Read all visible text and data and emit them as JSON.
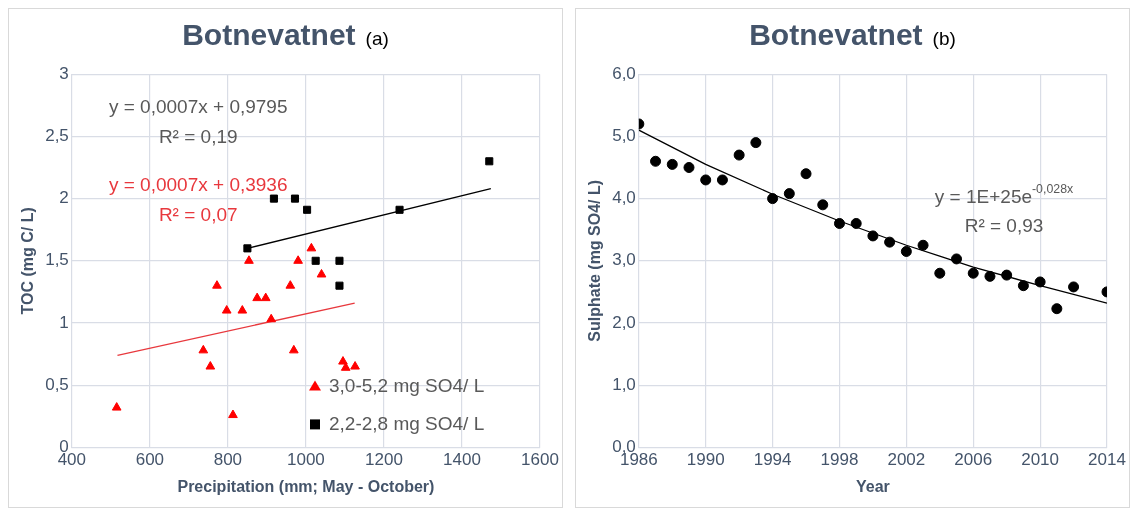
{
  "chart_data": [
    {
      "type": "scatter",
      "title": "Botnevatnet",
      "subtitle": "(a)",
      "xlabel": "Precipitation (mm; May - October)",
      "ylabel": "TOC (mg C/ L)",
      "xlim": [
        400,
        1600
      ],
      "xticks": [
        400,
        600,
        800,
        1000,
        1200,
        1400,
        1600
      ],
      "ylim": [
        0,
        3
      ],
      "yticks": [
        0,
        {
          "value": 0.5,
          "label": "0,5"
        },
        1,
        {
          "value": 1.5,
          "label": "1,5"
        },
        2,
        {
          "value": 2.5,
          "label": "2,5"
        },
        3
      ],
      "grid": true,
      "legend": "bottom right",
      "annotations": [
        "y = 0,0007x + 0,9795",
        "R² = 0,19",
        "y = 0,0007x + 0,3936",
        "R² = 0,07"
      ],
      "series": [
        {
          "name": "3,0-5,2 mg SO4/ L",
          "marker": "triangle",
          "color": "#ff0000",
          "x": [
            515,
            737,
            755,
            772,
            797,
            837,
            813,
            854,
            875,
            897,
            911,
            960,
            969,
            980,
            1014,
            1040,
            1095,
            1102,
            1126
          ],
          "values": [
            0.32,
            0.78,
            0.65,
            1.3,
            1.1,
            1.1,
            0.26,
            1.5,
            1.2,
            1.2,
            1.03,
            1.3,
            0.78,
            1.5,
            1.6,
            1.39,
            0.69,
            0.64,
            0.65
          ]
        },
        {
          "name": "2,2-2,8 mg SO4/ L",
          "marker": "square",
          "color": "#000000",
          "x": [
            850,
            918,
            972,
            1003,
            1025,
            1086,
            1086,
            1240,
            1470
          ],
          "values": [
            1.6,
            2.0,
            2.0,
            1.91,
            1.5,
            1.5,
            1.3,
            1.91,
            2.3
          ]
        },
        {
          "type": "line",
          "marker": "none",
          "color": "#e8383d",
          "x": [
            517,
            1125
          ],
          "values": [
            0.74,
            1.16
          ]
        },
        {
          "type": "line",
          "marker": "none",
          "color": "#000000",
          "x": [
            850,
            1474
          ],
          "values": [
            1.6,
            2.08
          ]
        }
      ]
    },
    {
      "type": "scatter",
      "title": "Botnevatnet",
      "subtitle": "(b)",
      "xlabel": "Year",
      "ylabel": "Sulphate (mg SO4/ L)",
      "xlim": [
        1986,
        2014
      ],
      "xticks": [
        1986,
        1990,
        1994,
        1998,
        2002,
        2006,
        2010,
        2014
      ],
      "ylim": [
        0,
        6
      ],
      "yticks": [
        {
          "value": 0,
          "label": "0,0"
        },
        {
          "value": 1,
          "label": "1,0"
        },
        {
          "value": 2,
          "label": "2,0"
        },
        {
          "value": 3,
          "label": "3,0"
        },
        {
          "value": 4,
          "label": "4,0"
        },
        {
          "value": 5,
          "label": "5,0"
        },
        {
          "value": 6,
          "label": "6,0"
        }
      ],
      "grid": true,
      "annotations": [
        "y = 1E+25e$^{-0,028x}$",
        "R² = 0,93"
      ],
      "series": [
        {
          "marker": "circle",
          "color": "#000000",
          "x": [
            1986,
            1987,
            1988,
            1989,
            1990,
            1991,
            1992,
            1993,
            1994,
            1995,
            1996,
            1997,
            1998,
            1999,
            2000,
            2001,
            2002,
            2003,
            2004,
            2005,
            2006,
            2007,
            2008,
            2009,
            2010,
            2011,
            2012,
            2014
          ],
          "values": [
            5.2,
            4.6,
            4.55,
            4.5,
            4.3,
            4.3,
            4.7,
            4.9,
            4.0,
            4.08,
            4.4,
            3.9,
            3.6,
            3.6,
            3.4,
            3.3,
            3.15,
            3.25,
            2.8,
            3.03,
            2.8,
            2.75,
            2.77,
            2.6,
            2.66,
            2.23,
            2.58,
            2.5
          ]
        },
        {
          "type": "line",
          "marker": "none",
          "color": "#000000",
          "x": [
            1986,
            1990,
            1994,
            1998,
            2002,
            2006,
            2010,
            2014
          ],
          "values": [
            5.1,
            4.55,
            4.07,
            3.64,
            3.25,
            2.9,
            2.6,
            2.32
          ]
        }
      ]
    }
  ]
}
